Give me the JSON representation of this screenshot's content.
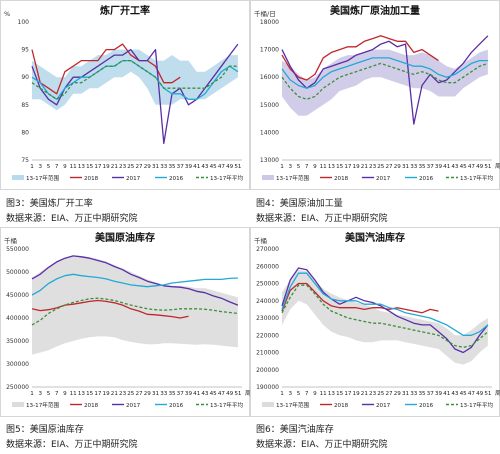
{
  "colors": {
    "range": "#b9d9ec",
    "range_gray": "#dcdcdc",
    "range_lav": "#ccc8e6",
    "y2018": "#c0272d",
    "y2017": "#5a2ea6",
    "y2016": "#22a9d6",
    "avg": "#3b8f3b"
  },
  "legend": {
    "labels": [
      "13-17年范围",
      "2018",
      "2017",
      "2016",
      "13-17年平均"
    ]
  },
  "panels": [
    {
      "caption": "图3：美国炼厂开工率",
      "source": "数据来源：EIA、万正中期研究院"
    },
    {
      "caption": "图4：美国原油加工量",
      "source": "数据来源：EIA、万正中期研究院"
    },
    {
      "caption": "图5：美国原油库存",
      "source": "数据来源：EIA、万正中期研究院"
    },
    {
      "caption": "图6：美国汽油库存",
      "source": "数据来源：EIA、万正中期研究院"
    }
  ],
  "chart_data": [
    {
      "type": "line",
      "title": "炼厂开工率",
      "unit": "%",
      "xlabel": "",
      "ylim": [
        75,
        100
      ],
      "yticks": [
        75,
        80,
        85,
        90,
        95,
        100
      ],
      "x": [
        1,
        3,
        5,
        7,
        9,
        11,
        13,
        15,
        17,
        19,
        21,
        23,
        25,
        27,
        29,
        31,
        33,
        35,
        37,
        39,
        41,
        43,
        45,
        47,
        49,
        51
      ],
      "xlabels": [
        "1",
        "3",
        "5",
        "7",
        "9",
        "11",
        "13",
        "15",
        "17",
        "19",
        "21",
        "23",
        "25",
        "27",
        "29",
        "31",
        "33",
        "35",
        "37",
        "39",
        "41",
        "43",
        "45",
        "47",
        "49",
        "51"
      ],
      "range_low": [
        86,
        86,
        85,
        84,
        85,
        87,
        87,
        88,
        88,
        89,
        90,
        90,
        91,
        90,
        88,
        85,
        85,
        85,
        86,
        86,
        86,
        86,
        87,
        88,
        89,
        90
      ],
      "range_high": [
        93,
        92,
        91,
        90,
        90,
        92,
        92,
        93,
        94,
        94,
        95,
        95,
        95,
        95,
        94,
        93,
        93,
        94,
        93,
        93,
        91,
        91,
        92,
        93,
        94,
        94
      ],
      "series": [
        {
          "name": "2018",
          "key": "y2018",
          "dash": false,
          "values": [
            95,
            89,
            88,
            87,
            91,
            92,
            93,
            93,
            93,
            95,
            95,
            96,
            94,
            93,
            93,
            92,
            89,
            89,
            90,
            null,
            null,
            null,
            null,
            null,
            null,
            null
          ]
        },
        {
          "name": "2017",
          "key": "y2017",
          "dash": false,
          "values": [
            92,
            88,
            86,
            85,
            88,
            90,
            90,
            91,
            92,
            93,
            94,
            94,
            95,
            93,
            93,
            95,
            78,
            87,
            88,
            85,
            86,
            88,
            90,
            92,
            94,
            96
          ]
        },
        {
          "name": "2016",
          "key": "y2016",
          "dash": false,
          "values": [
            90,
            89,
            87,
            86,
            88,
            89,
            90,
            90,
            91,
            92,
            92,
            93,
            93,
            92,
            91,
            90,
            88,
            87,
            87,
            86,
            86,
            87,
            89,
            91,
            92,
            91
          ]
        },
        {
          "name": "13-17年平均",
          "key": "avg",
          "dash": true,
          "values": [
            89,
            88,
            87,
            86,
            87,
            89,
            89,
            90,
            91,
            92,
            92,
            93,
            93,
            92,
            91,
            90,
            88,
            88,
            88,
            88,
            88,
            88,
            89,
            90,
            92,
            92
          ]
        }
      ]
    },
    {
      "type": "line",
      "title": "美国炼厂原油加工量",
      "unit": "千桶/日",
      "xlabel": "周",
      "ylim": [
        13000,
        18000
      ],
      "yticks": [
        13000,
        14000,
        15000,
        16000,
        17000,
        18000
      ],
      "x": [
        1,
        3,
        5,
        7,
        9,
        11,
        13,
        15,
        17,
        19,
        21,
        23,
        25,
        27,
        29,
        31,
        33,
        35,
        37,
        39,
        41,
        43,
        45,
        47,
        49,
        51
      ],
      "xlabels": [
        "1",
        "3",
        "5",
        "7",
        "9",
        "11",
        "13",
        "15",
        "17",
        "19",
        "21",
        "23",
        "25",
        "27",
        "29",
        "31",
        "33",
        "35",
        "37",
        "39",
        "41",
        "43",
        "45",
        "47",
        "49",
        "51"
      ],
      "range_low": [
        15300,
        14900,
        14600,
        14600,
        14800,
        15000,
        15200,
        15500,
        15600,
        15700,
        15900,
        16000,
        16000,
        15900,
        15800,
        15700,
        15600,
        15600,
        15500,
        15300,
        15300,
        15300,
        15600,
        15800,
        16000,
        16100
      ],
      "range_high": [
        16600,
        16400,
        16100,
        15900,
        16000,
        16300,
        16500,
        16700,
        16800,
        16800,
        16900,
        17000,
        17000,
        17000,
        16900,
        16800,
        16800,
        16900,
        16800,
        16600,
        16400,
        16300,
        16500,
        16700,
        16900,
        17000
      ],
      "series": [
        {
          "name": "2018",
          "key": "y2018",
          "dash": false,
          "values": [
            16800,
            16300,
            16000,
            15900,
            16100,
            16700,
            16900,
            17000,
            17100,
            17100,
            17300,
            17400,
            17500,
            17400,
            17300,
            17300,
            16900,
            17000,
            16800,
            16600,
            null,
            null,
            null,
            null,
            null,
            null
          ]
        },
        {
          "name": "2017",
          "key": "y2017",
          "dash": false,
          "values": [
            17000,
            16400,
            15900,
            15600,
            15800,
            16300,
            16400,
            16500,
            16600,
            16800,
            16900,
            17000,
            17200,
            17300,
            17100,
            17200,
            14300,
            15700,
            16100,
            15800,
            15900,
            16200,
            16500,
            16900,
            17200,
            17500
          ]
        },
        {
          "name": "2016",
          "key": "y2016",
          "dash": false,
          "values": [
            16300,
            15900,
            15700,
            15600,
            15700,
            16000,
            16200,
            16300,
            16400,
            16500,
            16600,
            16700,
            16700,
            16700,
            16600,
            16500,
            16400,
            16400,
            16300,
            16100,
            16000,
            16100,
            16300,
            16500,
            16600,
            16600
          ]
        },
        {
          "name": "13-17年平均",
          "key": "avg",
          "dash": true,
          "values": [
            16000,
            15600,
            15300,
            15200,
            15300,
            15600,
            15800,
            16000,
            16100,
            16200,
            16300,
            16400,
            16500,
            16400,
            16300,
            16200,
            16100,
            16200,
            16100,
            15900,
            15800,
            15800,
            16000,
            16200,
            16400,
            16500
          ]
        }
      ]
    },
    {
      "type": "line",
      "title": "美国原油库存",
      "unit": "千桶",
      "xlabel": "周",
      "ylim": [
        250000,
        550000
      ],
      "yticks": [
        250000,
        300000,
        350000,
        400000,
        450000,
        500000,
        550000
      ],
      "x": [
        1,
        3,
        5,
        7,
        9,
        11,
        13,
        15,
        17,
        19,
        21,
        23,
        25,
        27,
        29,
        31,
        33,
        35,
        37,
        39,
        41,
        43,
        45,
        47,
        49,
        51
      ],
      "xlabels": [
        "1",
        "3",
        "5",
        "7",
        "9",
        "11",
        "13",
        "15",
        "17",
        "19",
        "21",
        "23",
        "25",
        "27",
        "29",
        "31",
        "33",
        "35",
        "37",
        "39",
        "41",
        "43",
        "45",
        "47",
        "49",
        "51"
      ],
      "range_low": [
        320000,
        325000,
        330000,
        338000,
        345000,
        350000,
        355000,
        358000,
        360000,
        360000,
        358000,
        352000,
        348000,
        345000,
        343000,
        343000,
        345000,
        345000,
        344000,
        343000,
        342000,
        343000,
        342000,
        340000,
        338000,
        336000
      ],
      "range_high": [
        488000,
        500000,
        512000,
        522000,
        530000,
        535000,
        535000,
        532000,
        528000,
        523000,
        515000,
        508000,
        500000,
        492000,
        484000,
        478000,
        472000,
        470000,
        470000,
        468000,
        465000,
        465000,
        460000,
        455000,
        450000,
        445000
      ],
      "series": [
        {
          "name": "2018",
          "key": "y2018",
          "dash": false,
          "values": [
            420000,
            416000,
            418000,
            422000,
            428000,
            430000,
            433000,
            436000,
            438000,
            436000,
            433000,
            428000,
            420000,
            415000,
            408000,
            407000,
            405000,
            403000,
            400000,
            404000,
            null,
            null,
            null,
            null,
            null,
            null
          ]
        },
        {
          "name": "2017",
          "key": "y2017",
          "dash": false,
          "values": [
            485000,
            495000,
            510000,
            522000,
            530000,
            535000,
            533000,
            530000,
            525000,
            520000,
            512000,
            505000,
            495000,
            488000,
            480000,
            475000,
            470000,
            468000,
            467000,
            464000,
            458000,
            455000,
            448000,
            443000,
            435000,
            428000
          ]
        },
        {
          "name": "2016",
          "key": "y2016",
          "dash": false,
          "values": [
            450000,
            460000,
            475000,
            485000,
            492000,
            495000,
            492000,
            490000,
            488000,
            485000,
            480000,
            476000,
            472000,
            470000,
            468000,
            470000,
            472000,
            476000,
            478000,
            480000,
            482000,
            484000,
            484000,
            484000,
            486000,
            487000
          ]
        },
        {
          "name": "13-17年平均",
          "key": "avg",
          "dash": true,
          "values": [
            385000,
            395000,
            410000,
            420000,
            428000,
            434000,
            438000,
            442000,
            443000,
            441000,
            438000,
            433000,
            428000,
            424000,
            420000,
            418000,
            417000,
            418000,
            420000,
            420000,
            420000,
            419000,
            417000,
            414000,
            412000,
            410000
          ]
        }
      ]
    },
    {
      "type": "line",
      "title": "美国汽油库存",
      "unit": "千桶",
      "xlabel": "周",
      "ylim": [
        190000,
        270000
      ],
      "yticks": [
        190000,
        200000,
        210000,
        220000,
        230000,
        240000,
        250000,
        260000,
        270000
      ],
      "x": [
        1,
        3,
        5,
        7,
        9,
        11,
        13,
        15,
        17,
        19,
        21,
        23,
        25,
        27,
        29,
        31,
        33,
        35,
        37,
        39,
        41,
        43,
        45,
        47,
        49,
        51
      ],
      "xlabels": [
        "1",
        "3",
        "5",
        "7",
        "9",
        "11",
        "13",
        "15",
        "17",
        "19",
        "21",
        "23",
        "25",
        "27",
        "29",
        "31",
        "33",
        "35",
        "37",
        "39",
        "41",
        "43",
        "45",
        "47",
        "49",
        "51"
      ],
      "range_low": [
        226000,
        235000,
        240000,
        238000,
        232000,
        226000,
        222000,
        220000,
        219000,
        217000,
        216000,
        216000,
        217000,
        217000,
        217000,
        216000,
        215000,
        214000,
        213000,
        212000,
        208000,
        204000,
        203000,
        205000,
        210000,
        214000
      ],
      "range_high": [
        245000,
        252000,
        258000,
        257000,
        252000,
        247000,
        244000,
        242000,
        240000,
        239000,
        238000,
        236000,
        234000,
        233000,
        232000,
        231000,
        230000,
        229000,
        228000,
        227000,
        224000,
        220000,
        220000,
        223000,
        227000,
        230000
      ],
      "series": [
        {
          "name": "2018",
          "key": "y2018",
          "dash": false,
          "values": [
            234000,
            246000,
            250000,
            250000,
            245000,
            240000,
            237000,
            236000,
            236000,
            236000,
            235000,
            236000,
            236000,
            235000,
            236000,
            235000,
            234000,
            233000,
            235000,
            234000,
            null,
            null,
            null,
            null,
            null,
            null
          ]
        },
        {
          "name": "2017",
          "key": "y2017",
          "dash": false,
          "values": [
            237000,
            252000,
            259000,
            258000,
            252000,
            245000,
            241000,
            238000,
            240000,
            242000,
            240000,
            239000,
            237000,
            234000,
            231000,
            229000,
            227000,
            226000,
            226000,
            222000,
            218000,
            212000,
            210000,
            213000,
            220000,
            226000
          ]
        },
        {
          "name": "2016",
          "key": "y2016",
          "dash": false,
          "values": [
            235000,
            248000,
            256000,
            256000,
            250000,
            244000,
            241000,
            240000,
            240000,
            240000,
            238000,
            238000,
            238000,
            236000,
            235000,
            233000,
            232000,
            231000,
            230000,
            228000,
            226000,
            223000,
            220000,
            220000,
            222000,
            226000
          ]
        },
        {
          "name": "13-17年平均",
          "key": "avg",
          "dash": true,
          "values": [
            233000,
            242000,
            249000,
            249000,
            244000,
            238000,
            234000,
            232000,
            230000,
            229000,
            228000,
            227000,
            227000,
            226000,
            225000,
            224000,
            223000,
            222000,
            221000,
            220000,
            217000,
            214000,
            213000,
            214000,
            218000,
            222000
          ]
        }
      ]
    }
  ]
}
